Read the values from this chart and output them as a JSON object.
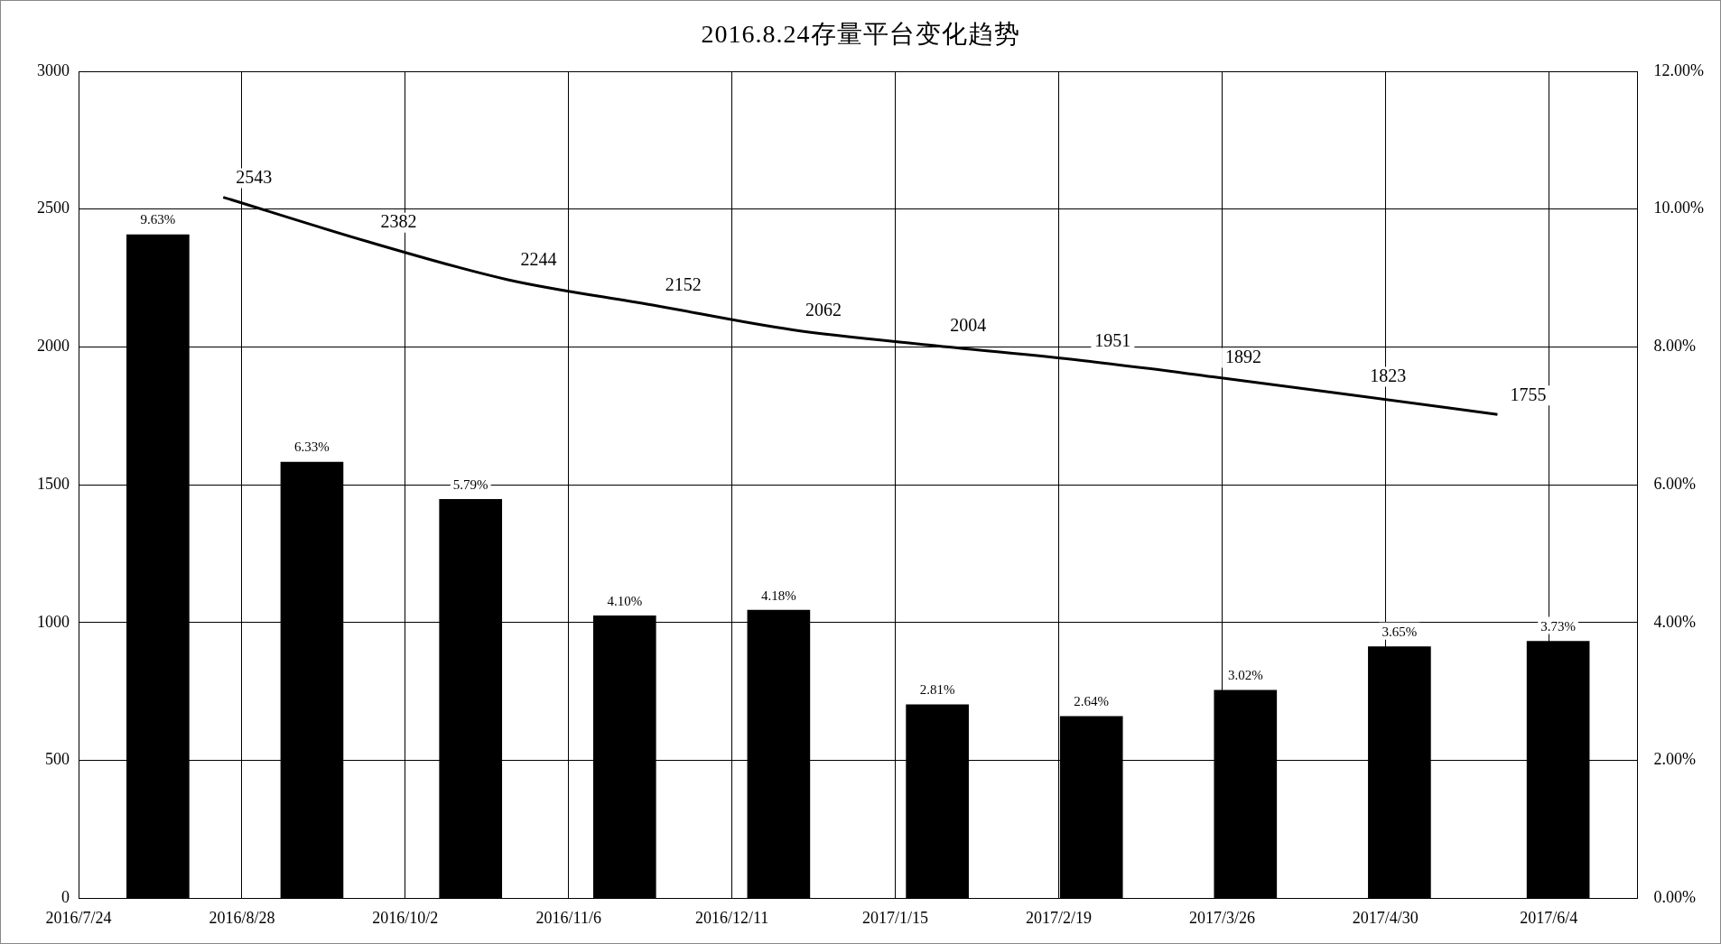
{
  "chart_data": {
    "type": "bar",
    "title": "2016.8.24存量平台变化趋势",
    "x": [
      "2016-08-10",
      "2016-09-12",
      "2016-10-16",
      "2016-11-18",
      "2016-12-21",
      "2017-01-24",
      "2017-02-26",
      "2017-03-31",
      "2017-05-03",
      "2017-06-06"
    ],
    "series": [
      {
        "axis": "y2",
        "color": "#000000",
        "values": [
          9.63,
          6.33,
          5.79,
          4.1,
          4.18,
          2.81,
          2.64,
          3.02,
          3.65,
          3.73
        ],
        "value_labels": [
          "9.63%",
          "6.33%",
          "5.79%",
          "4.10%",
          "4.18%",
          "2.81%",
          "2.64%",
          "3.02%",
          "3.65%",
          "3.73%"
        ]
      },
      {
        "type": "line",
        "color": "#000000",
        "x": [
          "2016-08-24",
          "2016-09-24",
          "2016-10-24",
          "2016-11-24",
          "2016-12-24",
          "2017-01-24",
          "2017-02-24",
          "2017-03-24",
          "2017-04-24",
          "2017-05-24"
        ],
        "values": [
          2543,
          2382,
          2244,
          2152,
          2062,
          2004,
          1951,
          1892,
          1823,
          1755
        ],
        "value_labels": [
          "2543",
          "2382",
          "2244",
          "2152",
          "2062",
          "2004",
          "1951",
          "1892",
          "1823",
          "1755"
        ]
      }
    ],
    "xlim": [
      "2016-07-24",
      "2017-06-23"
    ],
    "xticks": [
      {
        "value": "2016-07-24",
        "label": "2016/7/24"
      },
      {
        "value": "2016-08-28",
        "label": "2016/8/28"
      },
      {
        "value": "2016-10-02",
        "label": "2016/10/2"
      },
      {
        "value": "2016-11-06",
        "label": "2016/11/6"
      },
      {
        "value": "2016-12-11",
        "label": "2016/12/11"
      },
      {
        "value": "2017-01-15",
        "label": "2017/1/15"
      },
      {
        "value": "2017-02-19",
        "label": "2017/2/19"
      },
      {
        "value": "2017-03-26",
        "label": "2017/3/26"
      },
      {
        "value": "2017-04-30",
        "label": "2017/4/30"
      },
      {
        "value": "2017-06-04",
        "label": "2017/6/4"
      }
    ],
    "ylim": [
      0,
      3000
    ],
    "yticks": [
      0,
      500,
      1000,
      1500,
      2000,
      2500,
      3000
    ],
    "y2lim": [
      0,
      12
    ],
    "y2ticks": [
      {
        "value": 0,
        "label": "0.00%"
      },
      {
        "value": 2,
        "label": "2.00%"
      },
      {
        "value": 4,
        "label": "4.00%"
      },
      {
        "value": 6,
        "label": "6.00%"
      },
      {
        "value": 8,
        "label": "8.00%"
      },
      {
        "value": 10,
        "label": "10.00%"
      },
      {
        "value": 12,
        "label": "12.00%"
      }
    ],
    "grid": true,
    "marker": "none",
    "line_style": "solid"
  }
}
